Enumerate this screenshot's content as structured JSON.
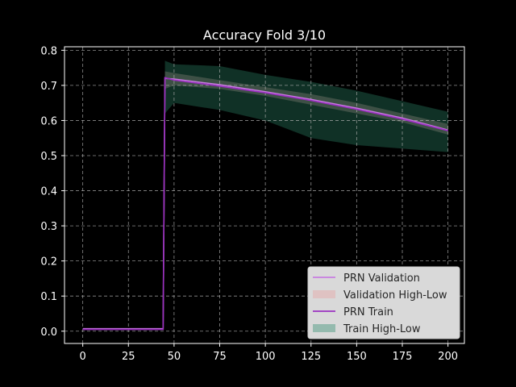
{
  "chart_data": {
    "type": "line",
    "title": "Accuracy Fold 3/10",
    "xlabel": "",
    "ylabel": "",
    "xlim": [
      -10,
      209
    ],
    "ylim": [
      -0.035,
      0.81
    ],
    "x_ticks": [
      0,
      25,
      50,
      75,
      100,
      125,
      150,
      175,
      200
    ],
    "y_ticks": [
      0.0,
      0.1,
      0.2,
      0.3,
      0.4,
      0.5,
      0.6,
      0.7,
      0.8
    ],
    "y_tick_labels": [
      "0.0",
      "0.1",
      "0.2",
      "0.3",
      "0.4",
      "0.5",
      "0.6",
      "0.7",
      "0.8"
    ],
    "grid": true,
    "legend_position": "lower-right",
    "series": [
      {
        "name": "PRN Validation",
        "kind": "line",
        "color": "#c77ce0",
        "x": [
          0,
          44,
          45,
          50,
          75,
          100,
          125,
          150,
          175,
          200
        ],
        "values": [
          0.007,
          0.007,
          0.72,
          0.718,
          0.702,
          0.682,
          0.66,
          0.635,
          0.607,
          0.573
        ]
      },
      {
        "name": "Validation High-Low",
        "kind": "band",
        "color": "#e8a0a0",
        "x": [
          45,
          50,
          75,
          100,
          125,
          150,
          175,
          200
        ],
        "low": [
          0.69,
          0.7,
          0.69,
          0.67,
          0.645,
          0.62,
          0.595,
          0.56
        ],
        "high": [
          0.74,
          0.735,
          0.715,
          0.695,
          0.675,
          0.65,
          0.62,
          0.59
        ]
      },
      {
        "name": "PRN Train",
        "kind": "line",
        "color": "#9b30c0",
        "x": [
          0,
          44,
          45,
          50,
          75,
          100,
          125,
          150,
          175,
          200
        ],
        "values": [
          0.005,
          0.005,
          0.722,
          0.715,
          0.698,
          0.679,
          0.657,
          0.632,
          0.604,
          0.571
        ]
      },
      {
        "name": "Train High-Low",
        "kind": "band",
        "color": "#2e8b6e",
        "x": [
          45,
          50,
          75,
          100,
          125,
          150,
          175,
          200
        ],
        "low": [
          0.62,
          0.65,
          0.63,
          0.6,
          0.55,
          0.53,
          0.52,
          0.51
        ],
        "high": [
          0.77,
          0.76,
          0.755,
          0.73,
          0.71,
          0.685,
          0.655,
          0.625
        ]
      }
    ]
  },
  "colors": {
    "background": "#000000",
    "axes_background": "#000000",
    "grid": "#b0b0b0",
    "legend_background": "#d9d9d9"
  }
}
